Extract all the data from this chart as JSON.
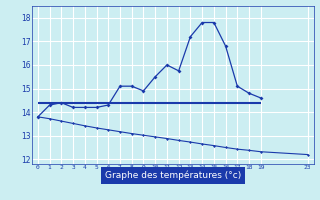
{
  "bg_color": "#cceef2",
  "grid_color": "#ffffff",
  "line_color": "#1a3aab",
  "xlabel": "Graphe des températures (°c)",
  "xlabel_color": "#ffffff",
  "xlabel_bg": "#1a3aab",
  "ylim": [
    11.8,
    18.5
  ],
  "xlim": [
    -0.5,
    23.5
  ],
  "yticks": [
    12,
    13,
    14,
    15,
    16,
    17,
    18
  ],
  "xticks": [
    0,
    1,
    2,
    3,
    4,
    5,
    6,
    7,
    8,
    9,
    10,
    11,
    12,
    13,
    14,
    15,
    16,
    17,
    18,
    19,
    23
  ],
  "curve1_x": [
    0,
    1,
    2,
    3,
    4,
    5,
    6,
    7,
    8,
    9,
    10,
    11,
    12,
    13,
    14,
    15,
    16,
    17,
    18,
    19
  ],
  "curve1_y": [
    13.8,
    14.3,
    14.4,
    14.2,
    14.2,
    14.2,
    14.3,
    15.1,
    15.1,
    14.9,
    15.5,
    16.0,
    15.75,
    17.2,
    17.8,
    17.8,
    16.8,
    15.1,
    14.8,
    14.6
  ],
  "curve2_x": [
    0,
    19
  ],
  "curve2_y": [
    14.4,
    14.4
  ],
  "curve3_x": [
    0,
    1,
    2,
    3,
    4,
    5,
    6,
    7,
    8,
    9,
    10,
    11,
    12,
    13,
    14,
    15,
    16,
    17,
    18,
    19,
    23
  ],
  "curve3_y": [
    13.8,
    13.72,
    13.62,
    13.52,
    13.42,
    13.33,
    13.25,
    13.17,
    13.09,
    13.02,
    12.95,
    12.88,
    12.8,
    12.73,
    12.65,
    12.58,
    12.5,
    12.43,
    12.38,
    12.32,
    12.2
  ]
}
